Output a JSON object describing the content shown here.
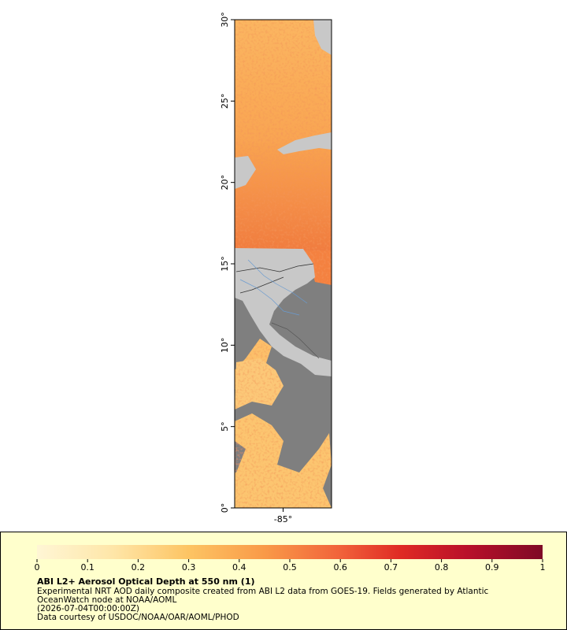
{
  "map": {
    "lat_lim": [
      0,
      30
    ],
    "lon_lim": [
      -88,
      -82
    ],
    "lat_ticks": [
      {
        "value": 0,
        "label": "0°"
      },
      {
        "value": 5,
        "label": "5°"
      },
      {
        "value": 10,
        "label": "10°"
      },
      {
        "value": 15,
        "label": "15°"
      },
      {
        "value": 20,
        "label": "20°"
      },
      {
        "value": 25,
        "label": "25°"
      },
      {
        "value": 30,
        "label": "30°"
      }
    ],
    "lon_ticks": [
      {
        "value": -85,
        "label": "-85°"
      }
    ]
  },
  "legend": {
    "range": [
      0,
      1
    ],
    "ticks": [
      0,
      0.1,
      0.2,
      0.3,
      0.4,
      0.5,
      0.6,
      0.7,
      0.8,
      0.9,
      1
    ],
    "title": "ABI L2+ Aerosol Optical Depth at 550 nm (1)",
    "lines": [
      "Experimental NRT AOD daily composite created from ABI L2 data from GOES-19. Fields generated by Atlantic",
      "OceanWatch node at NOAA/AOML",
      "(2026-07-04T00:00:00Z)",
      "Data courtesy of USDOC/NOAA/OAR/AOML/PHOD"
    ]
  }
}
